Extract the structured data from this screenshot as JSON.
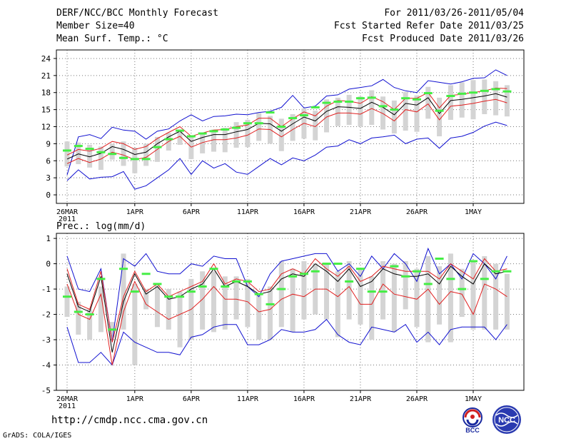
{
  "header": {
    "title": "DERF/NCC/BCC Monthly Forecast",
    "member_size": "Member Size=40",
    "variable": "Mean Surf. Temp.: °C",
    "period": "For 2011/03/26-2011/05/04",
    "started": "Fcst Started Refer Date 2011/03/25",
    "produced": "Fcst Produced Date 2011/03/26"
  },
  "footer": {
    "url": "http://cmdp.ncc.cma.gov.cn",
    "grads": "GrADS: COLA/IGES",
    "bcc_logo_text": "BCC",
    "ncc_logo_text": "NCC"
  },
  "colors": {
    "envelope": "#1010d0",
    "mean": "#000000",
    "spread": "#e02020",
    "marker": "#44ee44",
    "box": "#d4d4d4"
  },
  "chart_data": [
    {
      "type": "line",
      "title": "Mean Surf. Temp.: °C",
      "ylim": [
        -1.5,
        25.5
      ],
      "yticks": [
        0,
        3,
        6,
        9,
        12,
        15,
        18,
        21,
        24
      ],
      "xticks": [
        "26MAR",
        "1APR",
        "6APR",
        "11APR",
        "16APR",
        "21APR",
        "26APR",
        "1MAY"
      ],
      "xtick_days": [
        0,
        6,
        11,
        16,
        21,
        26,
        31,
        36
      ],
      "year_label": "2011",
      "days": 40,
      "max": [
        3.5,
        10.2,
        10.6,
        9.9,
        11.9,
        11.4,
        11.2,
        9.8,
        11.2,
        11.6,
        13.0,
        14.1,
        13.0,
        13.8,
        13.9,
        14.2,
        14.1,
        14.5,
        14.7,
        15.4,
        17.5,
        15.3,
        15.6,
        17.4,
        17.6,
        18.6,
        18.9,
        19.2,
        20.3,
        18.9,
        18.3,
        18.0,
        20.1,
        19.8,
        19.5,
        19.9,
        20.5,
        20.6,
        22.0,
        21.0
      ],
      "min": [
        2.5,
        4.4,
        2.8,
        3.1,
        3.2,
        4.1,
        1.0,
        1.6,
        3.0,
        4.4,
        6.4,
        3.6,
        6.0,
        4.7,
        5.5,
        4.0,
        3.6,
        5.0,
        6.4,
        5.3,
        6.5,
        6.0,
        7.0,
        8.4,
        8.6,
        9.7,
        9.0,
        10.0,
        10.2,
        10.5,
        9.0,
        9.8,
        10.0,
        8.2,
        10.0,
        10.3,
        11.0,
        12.1,
        12.8,
        12.2
      ],
      "spread_upper": [
        7.0,
        8.0,
        7.7,
        8.2,
        9.4,
        9.0,
        8.0,
        8.5,
        9.9,
        11.0,
        12.0,
        10.3,
        10.9,
        11.4,
        11.5,
        12.0,
        12.3,
        13.5,
        13.5,
        12.0,
        13.4,
        14.6,
        13.9,
        15.6,
        16.6,
        16.5,
        16.1,
        17.3,
        16.4,
        15.0,
        17.0,
        17.0,
        18.0,
        15.3,
        17.5,
        17.7,
        18.0,
        18.3,
        18.8,
        18.7
      ],
      "mean": [
        6.3,
        7.2,
        6.7,
        7.3,
        8.5,
        8.0,
        7.1,
        7.5,
        9.0,
        10.2,
        11.2,
        9.4,
        10.1,
        10.6,
        10.6,
        11.1,
        11.5,
        12.6,
        12.5,
        11.2,
        12.5,
        13.7,
        13.0,
        14.7,
        15.5,
        15.4,
        15.2,
        16.3,
        15.4,
        14.1,
        16.1,
        15.8,
        17.1,
        14.3,
        16.6,
        16.8,
        17.1,
        17.4,
        17.8,
        17.2
      ],
      "spread_lower": [
        5.5,
        6.4,
        5.7,
        6.3,
        7.5,
        7.0,
        6.2,
        6.6,
        8.0,
        9.4,
        10.3,
        8.4,
        9.2,
        9.7,
        9.7,
        10.0,
        10.5,
        11.6,
        11.5,
        10.2,
        11.5,
        12.6,
        12.0,
        13.7,
        14.4,
        14.4,
        14.2,
        15.2,
        14.3,
        13.0,
        15.0,
        14.6,
        16.0,
        13.2,
        15.6,
        15.8,
        16.1,
        16.5,
        16.8,
        16.2
      ],
      "box_high": [
        9.4,
        9.2,
        8.8,
        8.5,
        9.0,
        9.4,
        8.3,
        9.0,
        10.2,
        10.9,
        11.5,
        10.5,
        10.9,
        11.5,
        11.8,
        12.8,
        13.2,
        14.4,
        13.9,
        13.4,
        14.2,
        15.2,
        14.8,
        16.8,
        17.1,
        17.6,
        17.3,
        18.4,
        17.3,
        16.6,
        18.1,
        17.5,
        19.0,
        17.1,
        19.3,
        19.8,
        20.2,
        20.3,
        20.0,
        19.3
      ],
      "box_low": [
        5.0,
        5.4,
        4.8,
        4.4,
        6.2,
        5.1,
        3.8,
        5.1,
        5.8,
        7.8,
        8.8,
        6.3,
        7.3,
        7.6,
        7.5,
        8.3,
        8.4,
        9.5,
        9.0,
        7.7,
        9.5,
        9.9,
        9.6,
        11.0,
        12.1,
        12.3,
        12.0,
        12.3,
        11.5,
        10.8,
        11.3,
        11.1,
        13.4,
        10.3,
        13.2,
        13.6,
        13.3,
        14.2,
        14.0,
        13.8
      ],
      "marker": [
        7.8,
        8.6,
        8.1,
        7.5,
        7.2,
        6.5,
        6.3,
        6.3,
        8.4,
        9.8,
        11.3,
        10.3,
        10.8,
        11.2,
        11.5,
        11.8,
        12.6,
        12.6,
        14.5,
        12.0,
        13.5,
        14.0,
        15.4,
        16.2,
        16.4,
        16.4,
        17.0,
        17.1,
        15.6,
        15.0,
        17.0,
        16.8,
        17.9,
        14.8,
        17.4,
        17.8,
        18.0,
        18.3,
        18.6,
        18.2
      ]
    },
    {
      "type": "line",
      "title": "Prec.: log(mm/d)",
      "ylim": [
        -5,
        1.2
      ],
      "yticks": [
        -5,
        -4,
        -3,
        -2,
        -1,
        0,
        1
      ],
      "xticks": [
        "26MAR",
        "1APR",
        "6APR",
        "11APR",
        "16APR",
        "21APR",
        "26APR",
        "1MAY"
      ],
      "xtick_days": [
        0,
        6,
        11,
        16,
        21,
        26,
        31,
        36
      ],
      "year_label": "2011",
      "days": 40,
      "max": [
        0.3,
        -1.0,
        -1.1,
        -0.2,
        -3.1,
        0.2,
        -0.1,
        0.4,
        -0.3,
        -0.4,
        -0.4,
        0.0,
        -0.1,
        0.3,
        0.2,
        0.2,
        -0.9,
        -1.3,
        -0.4,
        0.1,
        0.2,
        0.3,
        0.4,
        0.4,
        -0.3,
        0.0,
        -0.5,
        0.3,
        -0.2,
        0.4,
        0.0,
        -0.7,
        0.6,
        -0.4,
        0.0,
        -0.6,
        0.4,
        0.0,
        -0.6,
        0.3
      ],
      "min": [
        -2.5,
        -3.9,
        -3.9,
        -3.5,
        -4.0,
        -2.7,
        -3.1,
        -3.3,
        -3.5,
        -3.5,
        -3.6,
        -2.9,
        -2.8,
        -2.5,
        -2.4,
        -2.4,
        -3.2,
        -3.2,
        -3.0,
        -2.6,
        -2.7,
        -2.7,
        -2.6,
        -2.2,
        -2.8,
        -3.1,
        -3.2,
        -2.5,
        -2.6,
        -2.7,
        -2.4,
        -3.1,
        -2.7,
        -3.2,
        -2.6,
        -2.5,
        -2.5,
        -2.5,
        -3.0,
        -2.4
      ],
      "spread_upper": [
        -0.2,
        -1.6,
        -1.8,
        -0.3,
        -3.1,
        -1.3,
        -0.3,
        -1.1,
        -0.8,
        -1.3,
        -1.1,
        -0.9,
        -0.7,
        0.0,
        -0.8,
        -0.6,
        -0.7,
        -1.1,
        -1.0,
        -0.4,
        -0.2,
        -0.4,
        0.2,
        -0.2,
        -0.5,
        -0.1,
        -0.7,
        -0.5,
        -0.1,
        -0.2,
        -0.3,
        -0.3,
        -0.3,
        -0.6,
        0.0,
        -0.3,
        -0.6,
        0.2,
        -0.3,
        -0.2
      ],
      "mean": [
        -0.4,
        -1.7,
        -1.9,
        -0.5,
        -3.5,
        -1.5,
        -0.4,
        -1.2,
        -0.9,
        -1.4,
        -1.3,
        -1.0,
        -0.8,
        -0.2,
        -0.9,
        -0.7,
        -0.9,
        -1.2,
        -1.1,
        -0.6,
        -0.4,
        -0.5,
        0.0,
        -0.3,
        -0.7,
        -0.2,
        -0.9,
        -0.7,
        -0.2,
        -0.4,
        -0.5,
        -0.5,
        -0.4,
        -0.8,
        -0.1,
        -0.5,
        -0.8,
        0.0,
        -0.4,
        -0.3
      ],
      "spread_lower": [
        -0.8,
        -2.0,
        -2.2,
        -1.2,
        -4.0,
        -1.9,
        -0.7,
        -1.6,
        -1.9,
        -2.2,
        -2.0,
        -1.8,
        -1.4,
        -0.9,
        -1.4,
        -1.4,
        -1.5,
        -1.9,
        -1.8,
        -1.4,
        -1.2,
        -1.3,
        -1.0,
        -1.0,
        -1.3,
        -0.9,
        -1.6,
        -1.6,
        -0.8,
        -1.2,
        -1.3,
        -1.4,
        -1.0,
        -1.6,
        -1.1,
        -1.2,
        -2.0,
        -0.8,
        -1.0,
        -1.3
      ],
      "box_high": [
        -0.9,
        -1.5,
        -1.8,
        -0.9,
        -2.3,
        0.4,
        -0.8,
        -1.0,
        -0.8,
        -1.0,
        -1.1,
        -0.6,
        -0.3,
        -0.3,
        -0.5,
        -0.5,
        -0.6,
        -1.2,
        -0.9,
        0.1,
        -0.2,
        0.1,
        0.0,
        0.0,
        -0.3,
        0.1,
        -0.2,
        -0.5,
        0.1,
        0.0,
        0.1,
        -0.2,
        0.3,
        -0.1,
        0.4,
        -0.2,
        0.1,
        0.3,
        0.0,
        -0.4
      ],
      "box_low": [
        -2.1,
        -2.8,
        -3.0,
        -2.7,
        -2.9,
        -2.6,
        -4.0,
        -1.8,
        -2.5,
        -2.6,
        -3.3,
        -3.0,
        -2.6,
        -2.7,
        -2.6,
        -2.2,
        -2.5,
        -3.0,
        -3.0,
        -2.5,
        -2.7,
        -2.2,
        -2.0,
        -2.2,
        -2.9,
        -2.2,
        -2.4,
        -3.0,
        -2.2,
        -2.7,
        -1.8,
        -2.5,
        -3.1,
        -2.4,
        -3.1,
        -2.1,
        -2.6,
        -2.6,
        -2.6,
        -2.6
      ],
      "marker": [
        -1.3,
        -1.9,
        -2.0,
        -0.6,
        -2.6,
        -0.2,
        -1.1,
        -0.4,
        -0.8,
        -1.3,
        -1.3,
        -1.1,
        -0.9,
        -0.2,
        -0.9,
        -0.7,
        -0.7,
        -1.2,
        -1.6,
        -1.0,
        -0.5,
        -0.4,
        -0.3,
        0.0,
        0.0,
        -0.7,
        -0.2,
        -1.1,
        -1.1,
        -0.1,
        -0.5,
        -0.3,
        -0.8,
        0.2,
        -0.6,
        -1.0,
        0.1,
        -0.6,
        -0.3,
        -0.3
      ]
    }
  ]
}
